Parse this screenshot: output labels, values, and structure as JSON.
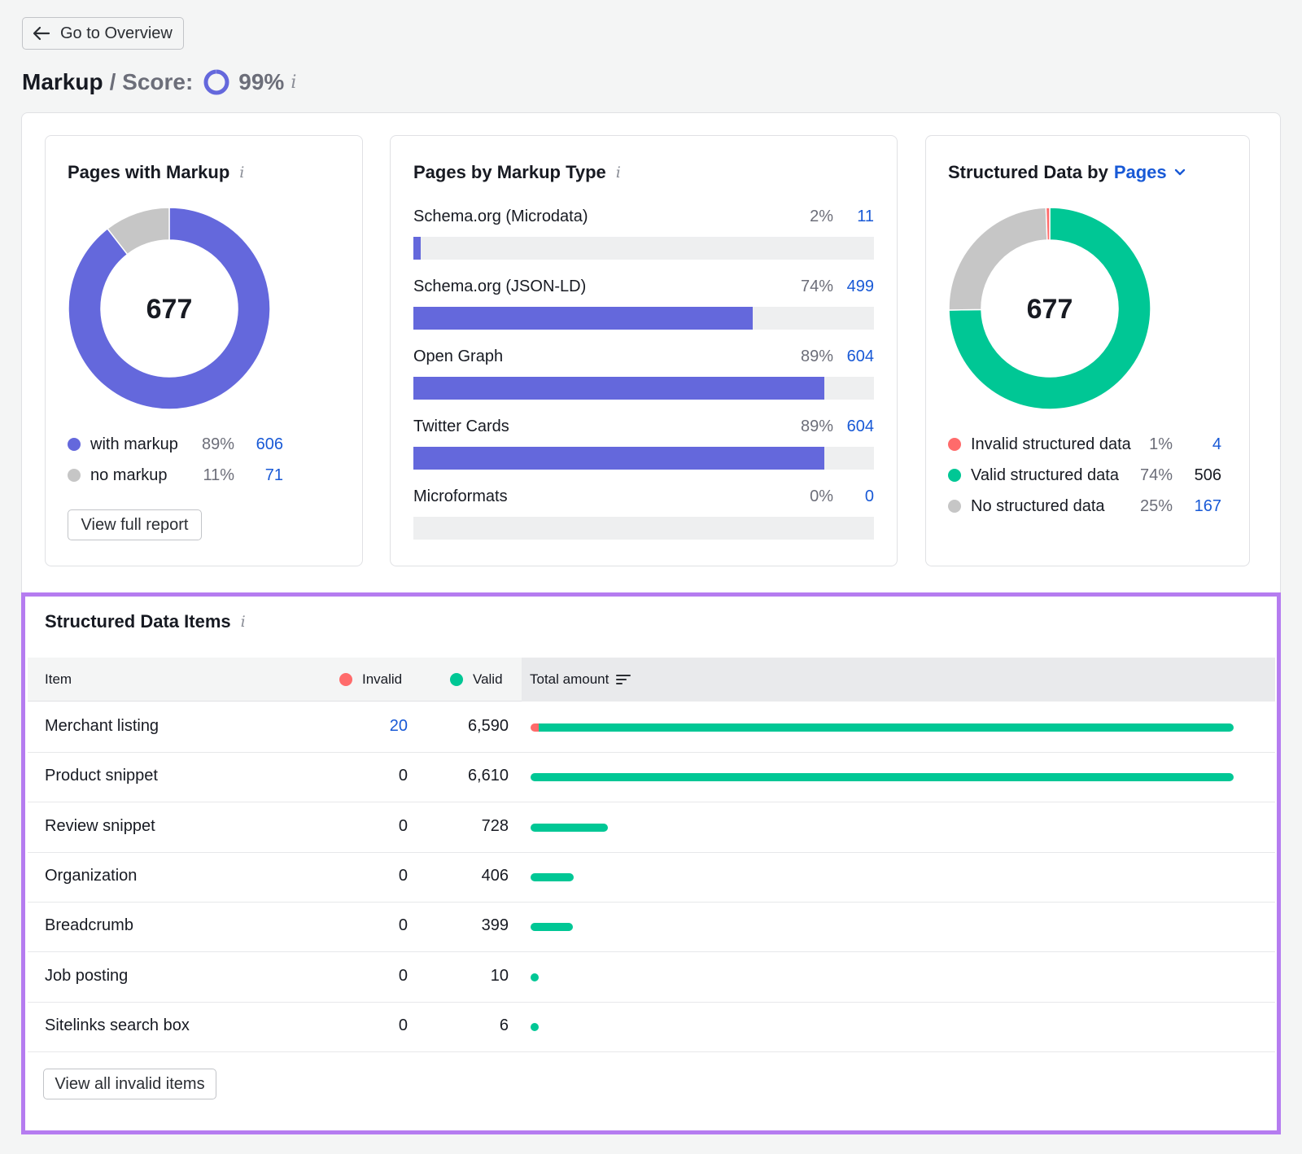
{
  "header": {
    "back_label": "Go to Overview",
    "title": "Markup",
    "score_label": "/ Score:",
    "score_value": "99%",
    "score_fraction": 0.99,
    "info_glyph": "i"
  },
  "colors": {
    "purple": "#6468dc",
    "gray": "#c6c6c6",
    "green": "#00c795",
    "red": "#ff6b6b",
    "link_blue": "#1859d6",
    "highlight_border": "#b57cf0"
  },
  "pages_with_markup": {
    "title": "Pages with Markup",
    "total": "677",
    "legend": [
      {
        "label": "with markup",
        "pct": "89%",
        "count": "606",
        "color": "#6468dc"
      },
      {
        "label": "no markup",
        "pct": "11%",
        "count": "71",
        "color": "#c6c6c6"
      }
    ],
    "button_label": "View full report"
  },
  "pages_by_type": {
    "title": "Pages by Markup Type",
    "rows": [
      {
        "label": "Schema.org (Microdata)",
        "pct": "2%",
        "count": "11",
        "fraction": 0.016
      },
      {
        "label": "Schema.org (JSON-LD)",
        "pct": "74%",
        "count": "499",
        "fraction": 0.737
      },
      {
        "label": "Open Graph",
        "pct": "89%",
        "count": "604",
        "fraction": 0.892
      },
      {
        "label": "Twitter Cards",
        "pct": "89%",
        "count": "604",
        "fraction": 0.892
      },
      {
        "label": "Microformats",
        "pct": "0%",
        "count": "0",
        "fraction": 0
      }
    ]
  },
  "structured_by_pages": {
    "title_prefix": "Structured Data by",
    "dropdown_label": "Pages",
    "total": "677",
    "legend": [
      {
        "label": "Invalid structured data",
        "pct": "1%",
        "count": "4",
        "color": "#ff6b6b",
        "link": true
      },
      {
        "label": "Valid structured data",
        "pct": "74%",
        "count": "506",
        "color": "#00c795",
        "link": false
      },
      {
        "label": "No structured data",
        "pct": "25%",
        "count": "167",
        "color": "#c6c6c6",
        "link": true
      }
    ]
  },
  "structured_items": {
    "title": "Structured Data Items",
    "columns": {
      "item": "Item",
      "invalid": "Invalid",
      "valid": "Valid",
      "total": "Total amount"
    },
    "max_total": 6610,
    "rows": [
      {
        "item": "Merchant listing",
        "invalid": "20",
        "valid": "6,590",
        "invalid_n": 20,
        "valid_n": 6590
      },
      {
        "item": "Product snippet",
        "invalid": "0",
        "valid": "6,610",
        "invalid_n": 0,
        "valid_n": 6610
      },
      {
        "item": "Review snippet",
        "invalid": "0",
        "valid": "728",
        "invalid_n": 0,
        "valid_n": 728
      },
      {
        "item": "Organization",
        "invalid": "0",
        "valid": "406",
        "invalid_n": 0,
        "valid_n": 406
      },
      {
        "item": "Breadcrumb",
        "invalid": "0",
        "valid": "399",
        "invalid_n": 0,
        "valid_n": 399
      },
      {
        "item": "Job posting",
        "invalid": "0",
        "valid": "10",
        "invalid_n": 0,
        "valid_n": 10
      },
      {
        "item": "Sitelinks search box",
        "invalid": "0",
        "valid": "6",
        "invalid_n": 0,
        "valid_n": 6
      }
    ],
    "button_label": "View all invalid items"
  }
}
